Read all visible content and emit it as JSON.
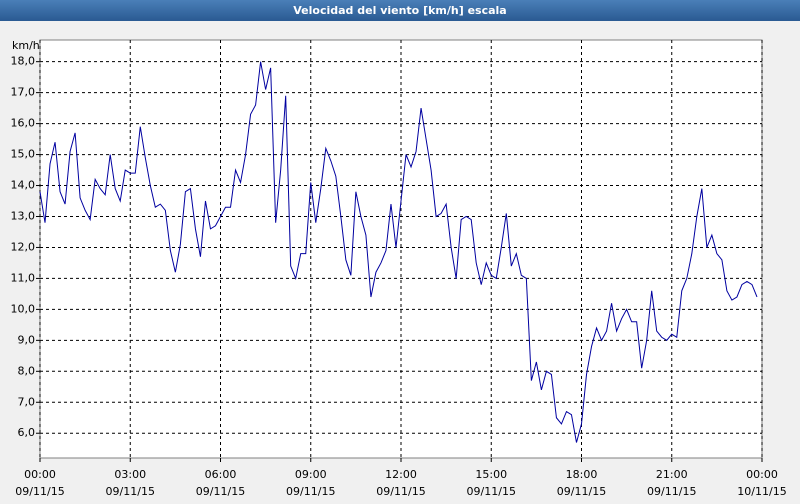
{
  "chart_data": {
    "type": "line",
    "title": "Velocidad del viento [km/h] escala",
    "y_unit": "km/h",
    "x": [
      0,
      10,
      20,
      30,
      40,
      50,
      60,
      70,
      80,
      90,
      100,
      110,
      120,
      130,
      140,
      150,
      160,
      170,
      180,
      190,
      200,
      210,
      220,
      230,
      240,
      250,
      260,
      270,
      280,
      290,
      300,
      310,
      320,
      330,
      340,
      350,
      360,
      370,
      380,
      390,
      400,
      410,
      420,
      430,
      440,
      450,
      460,
      470,
      480,
      490,
      500,
      510,
      520,
      530,
      540,
      550,
      560,
      570,
      580,
      590,
      600,
      610,
      620,
      630,
      640,
      650,
      660,
      670,
      680,
      690,
      700,
      710,
      720,
      730,
      740,
      750,
      760,
      770,
      780,
      790,
      800,
      810,
      820,
      830,
      840,
      850,
      860,
      870,
      880,
      890,
      900,
      910,
      920,
      930,
      940,
      950,
      960,
      970,
      980,
      990,
      1000,
      1010,
      1020,
      1030,
      1040,
      1050,
      1060,
      1070,
      1080,
      1090,
      1100,
      1110,
      1120,
      1130,
      1140,
      1150,
      1160,
      1170,
      1180,
      1190,
      1200,
      1210,
      1220,
      1230,
      1240,
      1250,
      1260,
      1270,
      1280,
      1290,
      1300,
      1310,
      1320,
      1330,
      1340,
      1350,
      1360,
      1370,
      1380,
      1390,
      1400,
      1410,
      1420,
      1430
    ],
    "series": [
      {
        "color": "#0000a0",
        "values": [
          13.8,
          12.8,
          14.7,
          15.4,
          13.8,
          13.4,
          15.1,
          15.7,
          13.6,
          13.2,
          12.9,
          14.2,
          13.9,
          13.7,
          15.0,
          13.9,
          13.5,
          14.5,
          14.4,
          14.4,
          15.9,
          14.9,
          14.0,
          13.3,
          13.4,
          13.2,
          11.9,
          11.2,
          12.1,
          13.8,
          13.9,
          12.6,
          11.7,
          13.5,
          12.6,
          12.7,
          13.0,
          13.3,
          13.3,
          14.5,
          14.1,
          15.0,
          16.3,
          16.6,
          18.0,
          17.1,
          17.8,
          12.8,
          14.5,
          16.9,
          11.4,
          11.0,
          11.8,
          11.8,
          14.1,
          12.8,
          13.9,
          15.2,
          14.8,
          14.3,
          13.0,
          11.6,
          11.1,
          13.8,
          13.0,
          12.4,
          10.4,
          11.2,
          11.5,
          11.9,
          13.4,
          12.0,
          13.5,
          15.0,
          14.6,
          15.1,
          16.5,
          15.5,
          14.5,
          13.0,
          13.1,
          13.4,
          12.0,
          11.0,
          12.9,
          13.0,
          12.9,
          11.5,
          10.8,
          11.5,
          11.1,
          11.0,
          12.0,
          13.1,
          11.4,
          11.8,
          11.1,
          11.0,
          7.7,
          8.3,
          7.4,
          8.0,
          7.9,
          6.5,
          6.3,
          6.7,
          6.6,
          5.7,
          6.3,
          7.9,
          8.8,
          9.4,
          9.0,
          9.3,
          10.2,
          9.3,
          9.7,
          10.0,
          9.6,
          9.6,
          8.1,
          9.0,
          10.6,
          9.3,
          9.1,
          9.0,
          9.2,
          9.1,
          10.6,
          11.0,
          11.8,
          13.0,
          13.9,
          12.0,
          12.4,
          11.8,
          11.6,
          10.6,
          10.3,
          10.4,
          10.8,
          10.9,
          10.8,
          10.4
        ]
      }
    ],
    "xlim": [
      0,
      1440
    ],
    "xticks": [
      {
        "value": 0,
        "label": "00:00"
      },
      {
        "value": 180,
        "label": "03:00"
      },
      {
        "value": 360,
        "label": "06:00"
      },
      {
        "value": 540,
        "label": "09:00"
      },
      {
        "value": 720,
        "label": "12:00"
      },
      {
        "value": 900,
        "label": "15:00"
      },
      {
        "value": 1080,
        "label": "18:00"
      },
      {
        "value": 1260,
        "label": "21:00"
      },
      {
        "value": 1440,
        "label": "00:00"
      }
    ],
    "xtick_dates": [
      "09/11/15",
      "09/11/15",
      "09/11/15",
      "09/11/15",
      "09/11/15",
      "09/11/15",
      "09/11/15",
      "09/11/15",
      "10/11/15"
    ],
    "ylim": [
      5.2,
      18.7
    ],
    "yticks": [
      {
        "value": 6,
        "label": "6,0"
      },
      {
        "value": 7,
        "label": "7,0"
      },
      {
        "value": 8,
        "label": "8,0"
      },
      {
        "value": 9,
        "label": "9,0"
      },
      {
        "value": 10,
        "label": "10,0"
      },
      {
        "value": 11,
        "label": "11,0"
      },
      {
        "value": 12,
        "label": "12,0"
      },
      {
        "value": 13,
        "label": "13,0"
      },
      {
        "value": 14,
        "label": "14,0"
      },
      {
        "value": 15,
        "label": "15,0"
      },
      {
        "value": 16,
        "label": "16,0"
      },
      {
        "value": 17,
        "label": "17,0"
      },
      {
        "value": 18,
        "label": "18,0"
      }
    ],
    "grid": true
  }
}
